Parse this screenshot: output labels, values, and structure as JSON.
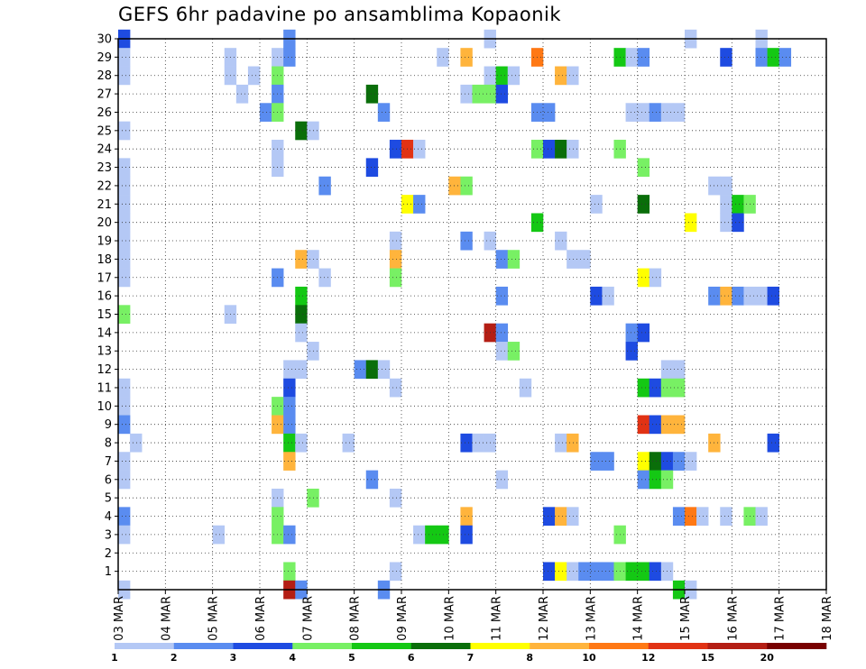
{
  "title": "GEFS 6hr padavine po ansamblima Kopaonik",
  "chart_data": {
    "type": "heatmap",
    "title": "GEFS 6hr padavine po ansamblima Kopaonik",
    "xlabel": "",
    "ylabel": "",
    "x_ticks": [
      "03 MAR",
      "04 MAR",
      "05 MAR",
      "06 MAR",
      "07 MAR",
      "08 MAR",
      "09 MAR",
      "10 MAR",
      "11 MAR",
      "12 MAR",
      "13 MAR",
      "14 MAR",
      "15 MAR",
      "16 MAR",
      "17 MAR",
      "18 MAR"
    ],
    "y_ticks": [
      "1",
      "2",
      "3",
      "4",
      "5",
      "6",
      "7",
      "8",
      "9",
      "10",
      "11",
      "12",
      "13",
      "14",
      "15",
      "16",
      "17",
      "18",
      "19",
      "20",
      "21",
      "22",
      "23",
      "24",
      "25",
      "26",
      "27",
      "28",
      "29",
      "30"
    ],
    "x_range": [
      0,
      60
    ],
    "y_range": [
      0,
      30
    ],
    "grid": true,
    "colorbar": {
      "labels": [
        "1",
        "2",
        "3",
        "4",
        "5",
        "6",
        "7",
        "8",
        "10",
        "12",
        "15",
        "20"
      ],
      "colors": [
        "#b4c8f5",
        "#5a8cf0",
        "#1e4be1",
        "#78f064",
        "#14c814",
        "#0a6e0a",
        "#ffff00",
        "#ffb43c",
        "#ff7814",
        "#e13214",
        "#b41e14",
        "#780000"
      ]
    },
    "cells": [
      [
        0,
        30,
        2
      ],
      [
        0,
        29,
        0
      ],
      [
        0,
        28,
        0
      ],
      [
        0,
        25,
        0
      ],
      [
        0,
        23,
        0
      ],
      [
        0,
        22,
        0
      ],
      [
        0,
        21,
        0
      ],
      [
        0,
        20,
        0
      ],
      [
        0,
        19,
        0
      ],
      [
        0,
        18,
        0
      ],
      [
        0,
        17,
        0
      ],
      [
        0,
        15,
        3
      ],
      [
        0,
        11,
        0
      ],
      [
        0,
        10,
        0
      ],
      [
        0,
        9,
        1
      ],
      [
        0,
        7,
        0
      ],
      [
        0,
        6,
        0
      ],
      [
        0,
        4,
        1
      ],
      [
        0,
        3,
        0
      ],
      [
        0,
        0,
        0
      ],
      [
        1,
        8,
        0
      ],
      [
        8,
        3,
        0
      ],
      [
        9,
        29,
        0
      ],
      [
        9,
        28,
        0
      ],
      [
        9,
        15,
        0
      ],
      [
        10,
        27,
        0
      ],
      [
        11,
        28,
        0
      ],
      [
        12,
        26,
        1
      ],
      [
        13,
        29,
        0
      ],
      [
        13,
        28,
        3
      ],
      [
        13,
        27,
        1
      ],
      [
        13,
        26,
        3
      ],
      [
        13,
        24,
        0
      ],
      [
        13,
        23,
        0
      ],
      [
        13,
        17,
        1
      ],
      [
        13,
        10,
        3
      ],
      [
        13,
        9,
        7
      ],
      [
        13,
        5,
        0
      ],
      [
        13,
        4,
        3
      ],
      [
        13,
        3,
        3
      ],
      [
        14,
        30,
        1
      ],
      [
        14,
        29,
        1
      ],
      [
        14,
        12,
        0
      ],
      [
        14,
        11,
        2
      ],
      [
        14,
        10,
        1
      ],
      [
        14,
        9,
        1
      ],
      [
        14,
        8,
        4
      ],
      [
        14,
        7,
        7
      ],
      [
        14,
        3,
        1
      ],
      [
        14,
        1,
        3
      ],
      [
        14,
        0,
        10
      ],
      [
        15,
        25,
        5
      ],
      [
        15,
        18,
        7
      ],
      [
        15,
        16,
        4
      ],
      [
        15,
        15,
        5
      ],
      [
        15,
        14,
        0
      ],
      [
        15,
        12,
        0
      ],
      [
        15,
        8,
        0
      ],
      [
        15,
        0,
        1
      ],
      [
        16,
        25,
        0
      ],
      [
        16,
        18,
        0
      ],
      [
        16,
        13,
        0
      ],
      [
        16,
        5,
        3
      ],
      [
        17,
        22,
        1
      ],
      [
        17,
        17,
        0
      ],
      [
        19,
        8,
        0
      ],
      [
        20,
        12,
        1
      ],
      [
        21,
        27,
        5
      ],
      [
        21,
        23,
        2
      ],
      [
        21,
        12,
        5
      ],
      [
        21,
        6,
        1
      ],
      [
        22,
        26,
        1
      ],
      [
        22,
        12,
        0
      ],
      [
        22,
        0,
        1
      ],
      [
        23,
        24,
        2
      ],
      [
        23,
        19,
        0
      ],
      [
        23,
        18,
        7
      ],
      [
        23,
        17,
        3
      ],
      [
        23,
        11,
        0
      ],
      [
        23,
        5,
        0
      ],
      [
        23,
        1,
        0
      ],
      [
        24,
        24,
        9
      ],
      [
        24,
        21,
        6
      ],
      [
        25,
        24,
        0
      ],
      [
        25,
        21,
        1
      ],
      [
        25,
        3,
        0
      ],
      [
        26,
        3,
        4
      ],
      [
        27,
        29,
        0
      ],
      [
        27,
        3,
        4
      ],
      [
        28,
        22,
        7
      ],
      [
        29,
        29,
        7
      ],
      [
        29,
        27,
        0
      ],
      [
        29,
        22,
        3
      ],
      [
        29,
        19,
        1
      ],
      [
        29,
        8,
        2
      ],
      [
        29,
        4,
        7
      ],
      [
        29,
        3,
        2
      ],
      [
        30,
        27,
        3
      ],
      [
        30,
        8,
        0
      ],
      [
        31,
        30,
        0
      ],
      [
        31,
        28,
        0
      ],
      [
        31,
        27,
        3
      ],
      [
        31,
        19,
        0
      ],
      [
        31,
        14,
        10
      ],
      [
        31,
        8,
        0
      ],
      [
        32,
        28,
        4
      ],
      [
        32,
        27,
        2
      ],
      [
        32,
        18,
        1
      ],
      [
        32,
        16,
        1
      ],
      [
        32,
        14,
        1
      ],
      [
        32,
        13,
        0
      ],
      [
        32,
        6,
        0
      ],
      [
        33,
        28,
        0
      ],
      [
        33,
        18,
        3
      ],
      [
        33,
        13,
        3
      ],
      [
        34,
        11,
        0
      ],
      [
        35,
        29,
        8
      ],
      [
        35,
        26,
        1
      ],
      [
        35,
        24,
        3
      ],
      [
        35,
        20,
        4
      ],
      [
        36,
        26,
        1
      ],
      [
        36,
        24,
        2
      ],
      [
        36,
        4,
        2
      ],
      [
        36,
        1,
        2
      ],
      [
        37,
        28,
        7
      ],
      [
        37,
        24,
        5
      ],
      [
        37,
        19,
        0
      ],
      [
        37,
        8,
        0
      ],
      [
        37,
        4,
        7
      ],
      [
        37,
        1,
        6
      ],
      [
        38,
        28,
        0
      ],
      [
        38,
        24,
        0
      ],
      [
        38,
        18,
        0
      ],
      [
        38,
        8,
        7
      ],
      [
        38,
        4,
        0
      ],
      [
        38,
        1,
        0
      ],
      [
        39,
        18,
        0
      ],
      [
        39,
        1,
        1
      ],
      [
        40,
        21,
        0
      ],
      [
        40,
        16,
        2
      ],
      [
        40,
        7,
        1
      ],
      [
        40,
        1,
        1
      ],
      [
        41,
        16,
        0
      ],
      [
        41,
        7,
        1
      ],
      [
        41,
        1,
        1
      ],
      [
        42,
        29,
        4
      ],
      [
        42,
        24,
        3
      ],
      [
        42,
        3,
        3
      ],
      [
        42,
        1,
        3
      ],
      [
        43,
        29,
        0
      ],
      [
        43,
        26,
        0
      ],
      [
        43,
        14,
        1
      ],
      [
        43,
        13,
        2
      ],
      [
        43,
        1,
        4
      ],
      [
        44,
        29,
        1
      ],
      [
        44,
        26,
        0
      ],
      [
        44,
        23,
        3
      ],
      [
        44,
        21,
        5
      ],
      [
        44,
        17,
        6
      ],
      [
        44,
        14,
        2
      ],
      [
        44,
        11,
        4
      ],
      [
        44,
        9,
        9
      ],
      [
        44,
        7,
        6
      ],
      [
        44,
        6,
        1
      ],
      [
        44,
        1,
        4
      ],
      [
        45,
        26,
        1
      ],
      [
        45,
        17,
        0
      ],
      [
        45,
        11,
        2
      ],
      [
        45,
        9,
        2
      ],
      [
        45,
        7,
        5
      ],
      [
        45,
        6,
        4
      ],
      [
        45,
        1,
        2
      ],
      [
        46,
        26,
        0
      ],
      [
        46,
        12,
        0
      ],
      [
        46,
        11,
        3
      ],
      [
        46,
        9,
        7
      ],
      [
        46,
        7,
        2
      ],
      [
        46,
        6,
        3
      ],
      [
        46,
        1,
        0
      ],
      [
        47,
        26,
        0
      ],
      [
        47,
        12,
        0
      ],
      [
        47,
        11,
        3
      ],
      [
        47,
        9,
        7
      ],
      [
        47,
        7,
        1
      ],
      [
        47,
        4,
        1
      ],
      [
        47,
        0,
        4
      ],
      [
        48,
        30,
        0
      ],
      [
        48,
        20,
        6
      ],
      [
        48,
        7,
        0
      ],
      [
        48,
        4,
        8
      ],
      [
        48,
        0,
        0
      ],
      [
        49,
        4,
        0
      ],
      [
        50,
        22,
        0
      ],
      [
        50,
        16,
        1
      ],
      [
        50,
        8,
        7
      ],
      [
        51,
        29,
        2
      ],
      [
        51,
        22,
        0
      ],
      [
        51,
        21,
        0
      ],
      [
        51,
        20,
        0
      ],
      [
        51,
        16,
        7
      ],
      [
        51,
        4,
        0
      ],
      [
        52,
        21,
        4
      ],
      [
        52,
        20,
        2
      ],
      [
        52,
        16,
        1
      ],
      [
        53,
        21,
        3
      ],
      [
        53,
        16,
        0
      ],
      [
        53,
        4,
        3
      ],
      [
        54,
        30,
        0
      ],
      [
        54,
        29,
        1
      ],
      [
        54,
        16,
        0
      ],
      [
        54,
        4,
        0
      ],
      [
        55,
        29,
        4
      ],
      [
        55,
        16,
        2
      ],
      [
        55,
        8,
        2
      ],
      [
        56,
        29,
        1
      ]
    ]
  }
}
